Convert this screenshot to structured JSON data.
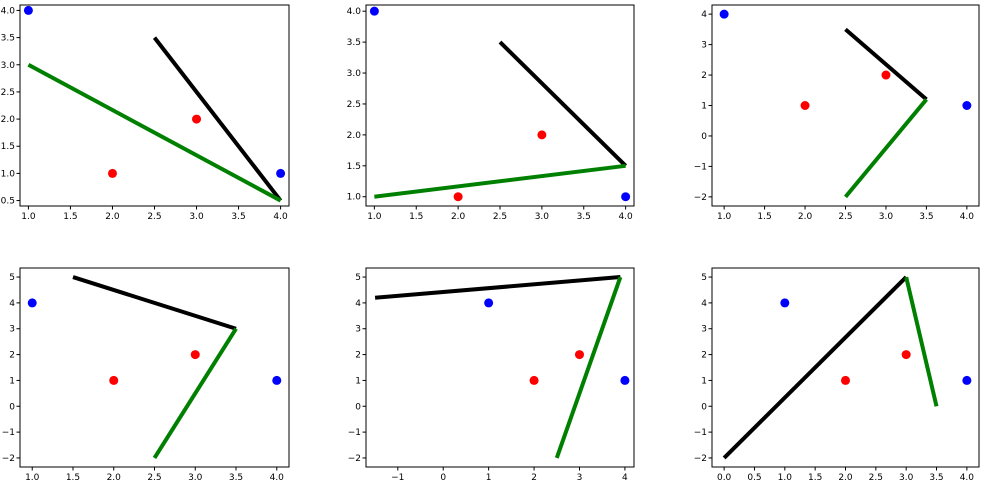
{
  "colors": {
    "black_line": "#000000",
    "green_line": "#008000",
    "red_points": "#ff0000",
    "blue_points": "#0000ff"
  },
  "chart_data": [
    {
      "type": "line",
      "title": "",
      "xlabel": "",
      "ylabel": "",
      "grid": false,
      "xlim": [
        0.9,
        4.1
      ],
      "ylim": [
        0.4,
        4.1
      ],
      "xticks": [
        1.0,
        1.5,
        2.0,
        2.5,
        3.0,
        3.5,
        4.0
      ],
      "yticks": [
        0.5,
        1.0,
        1.5,
        2.0,
        2.5,
        3.0,
        3.5,
        4.0
      ],
      "xtick_labels": [
        "1.0",
        "1.5",
        "2.0",
        "2.5",
        "3.0",
        "3.5",
        "4.0"
      ],
      "ytick_labels": [
        "0.5",
        "1.0",
        "1.5",
        "2.0",
        "2.5",
        "3.0",
        "3.5",
        "4.0"
      ],
      "lines": [
        {
          "color": "black",
          "points": [
            [
              2.5,
              3.5
            ],
            [
              4.0,
              0.5
            ]
          ]
        },
        {
          "color": "green",
          "points": [
            [
              1.0,
              3.0
            ],
            [
              4.0,
              0.5
            ]
          ]
        }
      ],
      "scatter": [
        {
          "color": "red",
          "points": [
            [
              2.0,
              1.0
            ],
            [
              3.0,
              2.0
            ]
          ]
        },
        {
          "color": "blue",
          "points": [
            [
              1.0,
              4.0
            ],
            [
              4.0,
              1.0
            ]
          ]
        }
      ]
    },
    {
      "type": "line",
      "title": "",
      "xlabel": "",
      "ylabel": "",
      "grid": false,
      "xlim": [
        0.9,
        4.1
      ],
      "ylim": [
        0.85,
        4.1
      ],
      "xticks": [
        1.0,
        1.5,
        2.0,
        2.5,
        3.0,
        3.5,
        4.0
      ],
      "yticks": [
        1.0,
        1.5,
        2.0,
        2.5,
        3.0,
        3.5,
        4.0
      ],
      "xtick_labels": [
        "1.0",
        "1.5",
        "2.0",
        "2.5",
        "3.0",
        "3.5",
        "4.0"
      ],
      "ytick_labels": [
        "1.0",
        "1.5",
        "2.0",
        "2.5",
        "3.0",
        "3.5",
        "4.0"
      ],
      "lines": [
        {
          "color": "black",
          "points": [
            [
              2.5,
              3.5
            ],
            [
              4.0,
              1.5
            ]
          ]
        },
        {
          "color": "green",
          "points": [
            [
              1.0,
              1.0
            ],
            [
              4.0,
              1.5
            ]
          ]
        }
      ],
      "scatter": [
        {
          "color": "red",
          "points": [
            [
              2.0,
              1.0
            ],
            [
              3.0,
              2.0
            ]
          ]
        },
        {
          "color": "blue",
          "points": [
            [
              1.0,
              4.0
            ],
            [
              4.0,
              1.0
            ]
          ]
        }
      ]
    },
    {
      "type": "line",
      "title": "",
      "xlabel": "",
      "ylabel": "",
      "grid": false,
      "xlim": [
        0.85,
        4.15
      ],
      "ylim": [
        -2.3,
        4.3
      ],
      "xticks": [
        1.0,
        1.5,
        2.0,
        2.5,
        3.0,
        3.5,
        4.0
      ],
      "yticks": [
        -2,
        -1,
        0,
        1,
        2,
        3,
        4
      ],
      "xtick_labels": [
        "1.0",
        "1.5",
        "2.0",
        "2.5",
        "3.0",
        "3.5",
        "4.0"
      ],
      "ytick_labels": [
        "−2",
        "−1",
        "0",
        "1",
        "2",
        "3",
        "4"
      ],
      "lines": [
        {
          "color": "black",
          "points": [
            [
              2.5,
              3.5
            ],
            [
              3.5,
              1.2
            ]
          ]
        },
        {
          "color": "green",
          "points": [
            [
              2.5,
              -2.0
            ],
            [
              3.5,
              1.2
            ]
          ]
        }
      ],
      "scatter": [
        {
          "color": "red",
          "points": [
            [
              2.0,
              1.0
            ],
            [
              3.0,
              2.0
            ]
          ]
        },
        {
          "color": "blue",
          "points": [
            [
              1.0,
              4.0
            ],
            [
              4.0,
              1.0
            ]
          ]
        }
      ]
    },
    {
      "type": "line",
      "title": "",
      "xlabel": "",
      "ylabel": "",
      "grid": false,
      "xlim": [
        0.85,
        4.15
      ],
      "ylim": [
        -2.35,
        5.35
      ],
      "xticks": [
        1.0,
        1.5,
        2.0,
        2.5,
        3.0,
        3.5,
        4.0
      ],
      "yticks": [
        -2,
        -1,
        0,
        1,
        2,
        3,
        4,
        5
      ],
      "xtick_labels": [
        "1.0",
        "1.5",
        "2.0",
        "2.5",
        "3.0",
        "3.5",
        "4.0"
      ],
      "ytick_labels": [
        "−2",
        "−1",
        "0",
        "1",
        "2",
        "3",
        "4",
        "5"
      ],
      "lines": [
        {
          "color": "black",
          "points": [
            [
              1.5,
              5.0
            ],
            [
              3.5,
              3.0
            ]
          ]
        },
        {
          "color": "green",
          "points": [
            [
              2.5,
              -2.0
            ],
            [
              3.5,
              3.0
            ]
          ]
        }
      ],
      "scatter": [
        {
          "color": "red",
          "points": [
            [
              2.0,
              1.0
            ],
            [
              3.0,
              2.0
            ]
          ]
        },
        {
          "color": "blue",
          "points": [
            [
              1.0,
              4.0
            ],
            [
              4.0,
              1.0
            ]
          ]
        }
      ]
    },
    {
      "type": "line",
      "title": "",
      "xlabel": "",
      "ylabel": "",
      "grid": false,
      "xlim": [
        -1.7,
        4.2
      ],
      "ylim": [
        -2.35,
        5.35
      ],
      "xticks": [
        -1,
        0,
        1,
        2,
        3,
        4
      ],
      "yticks": [
        -2,
        -1,
        0,
        1,
        2,
        3,
        4,
        5
      ],
      "xtick_labels": [
        "−1",
        "0",
        "1",
        "2",
        "3",
        "4"
      ],
      "ytick_labels": [
        "−2",
        "−1",
        "0",
        "1",
        "2",
        "3",
        "4",
        "5"
      ],
      "lines": [
        {
          "color": "black",
          "points": [
            [
              -1.5,
              4.2
            ],
            [
              3.9,
              5.0
            ]
          ]
        },
        {
          "color": "green",
          "points": [
            [
              2.5,
              -2.0
            ],
            [
              3.9,
              5.0
            ]
          ]
        }
      ],
      "scatter": [
        {
          "color": "red",
          "points": [
            [
              2.0,
              1.0
            ],
            [
              3.0,
              2.0
            ]
          ]
        },
        {
          "color": "blue",
          "points": [
            [
              1.0,
              4.0
            ],
            [
              4.0,
              1.0
            ]
          ]
        }
      ]
    },
    {
      "type": "line",
      "title": "",
      "xlabel": "",
      "ylabel": "",
      "grid": false,
      "xlim": [
        -0.2,
        4.2
      ],
      "ylim": [
        -2.35,
        5.35
      ],
      "xticks": [
        0.0,
        0.5,
        1.0,
        1.5,
        2.0,
        2.5,
        3.0,
        3.5,
        4.0
      ],
      "yticks": [
        -2,
        -1,
        0,
        1,
        2,
        3,
        4,
        5
      ],
      "xtick_labels": [
        "0.0",
        "0.5",
        "1.0",
        "1.5",
        "2.0",
        "2.5",
        "3.0",
        "3.5",
        "4.0"
      ],
      "ytick_labels": [
        "−2",
        "−1",
        "0",
        "1",
        "2",
        "3",
        "4",
        "5"
      ],
      "lines": [
        {
          "color": "black",
          "points": [
            [
              0.0,
              -2.0
            ],
            [
              3.0,
              5.0
            ]
          ]
        },
        {
          "color": "green",
          "points": [
            [
              3.0,
              5.0
            ],
            [
              3.5,
              0.0
            ]
          ]
        }
      ],
      "scatter": [
        {
          "color": "red",
          "points": [
            [
              2.0,
              1.0
            ],
            [
              3.0,
              2.0
            ]
          ]
        },
        {
          "color": "blue",
          "points": [
            [
              1.0,
              4.0
            ],
            [
              4.0,
              1.0
            ]
          ]
        }
      ]
    }
  ]
}
